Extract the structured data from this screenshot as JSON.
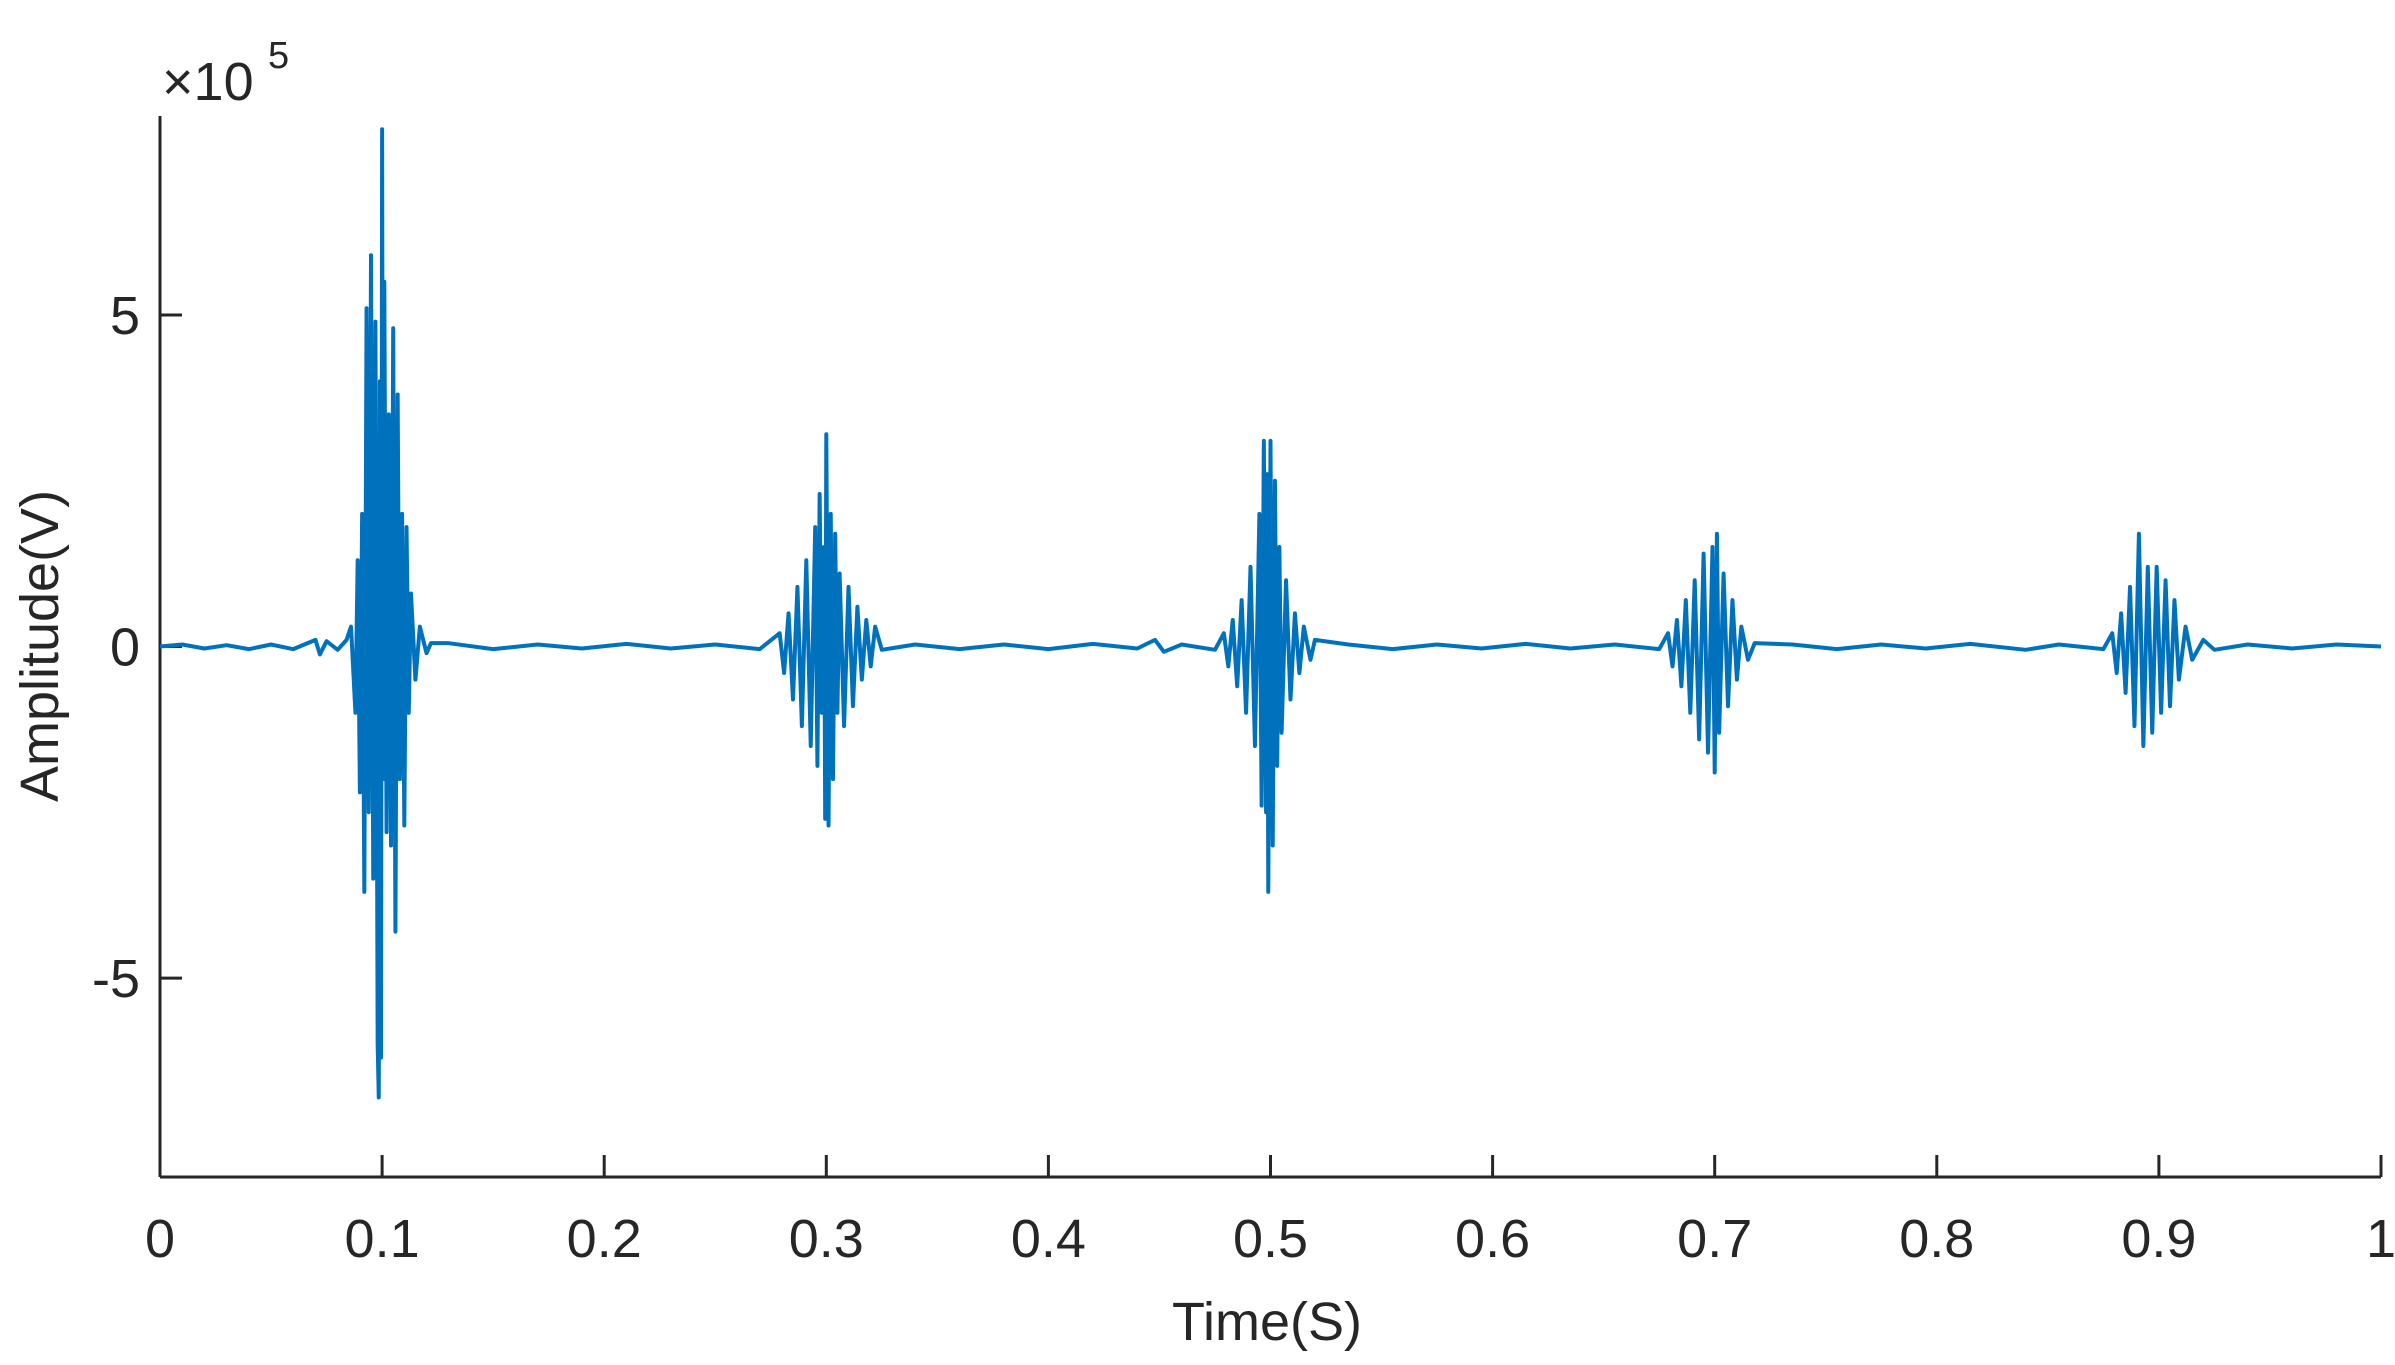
{
  "chart_data": {
    "type": "line",
    "x_label": "Time(S)",
    "y_label": "Amplitude(V)",
    "y_multiplier": "×10",
    "y_exponent": "5",
    "xlim": [
      0,
      1
    ],
    "xticks": [
      0,
      0.1,
      0.2,
      0.3,
      0.4,
      0.5,
      0.6,
      0.7,
      0.8,
      0.9,
      1
    ],
    "ylim": [
      -8,
      8
    ],
    "yticks": [
      -5,
      0,
      5
    ],
    "grid": false,
    "x": [
      0,
      0.01,
      0.02,
      0.03,
      0.04,
      0.05,
      0.06,
      0.07,
      0.072,
      0.075,
      0.08,
      0.084,
      0.086,
      0.088,
      0.089,
      0.09,
      0.091,
      0.092,
      0.093,
      0.094,
      0.095,
      0.096,
      0.097,
      0.098,
      0.0985,
      0.099,
      0.0995,
      0.1,
      0.1005,
      0.101,
      0.102,
      0.103,
      0.104,
      0.105,
      0.106,
      0.107,
      0.108,
      0.109,
      0.11,
      0.111,
      0.112,
      0.113,
      0.115,
      0.117,
      0.12,
      0.122,
      0.13,
      0.15,
      0.17,
      0.19,
      0.21,
      0.23,
      0.25,
      0.27,
      0.279,
      0.281,
      0.283,
      0.285,
      0.287,
      0.289,
      0.291,
      0.293,
      0.295,
      0.296,
      0.297,
      0.298,
      0.299,
      0.2995,
      0.3,
      0.301,
      0.302,
      0.303,
      0.304,
      0.305,
      0.306,
      0.308,
      0.31,
      0.312,
      0.314,
      0.316,
      0.318,
      0.32,
      0.322,
      0.325,
      0.34,
      0.36,
      0.38,
      0.4,
      0.42,
      0.44,
      0.448,
      0.452,
      0.46,
      0.475,
      0.479,
      0.481,
      0.483,
      0.485,
      0.487,
      0.489,
      0.491,
      0.493,
      0.495,
      0.496,
      0.497,
      0.498,
      0.4985,
      0.499,
      0.5,
      0.501,
      0.502,
      0.503,
      0.504,
      0.505,
      0.507,
      0.509,
      0.511,
      0.513,
      0.515,
      0.518,
      0.52,
      0.535,
      0.555,
      0.575,
      0.595,
      0.615,
      0.635,
      0.655,
      0.675,
      0.679,
      0.681,
      0.683,
      0.685,
      0.687,
      0.689,
      0.691,
      0.693,
      0.695,
      0.697,
      0.699,
      0.7,
      0.701,
      0.702,
      0.704,
      0.706,
      0.708,
      0.71,
      0.712,
      0.715,
      0.718,
      0.735,
      0.755,
      0.775,
      0.795,
      0.815,
      0.84,
      0.855,
      0.875,
      0.879,
      0.881,
      0.883,
      0.885,
      0.887,
      0.889,
      0.891,
      0.893,
      0.895,
      0.897,
      0.899,
      0.901,
      0.903,
      0.905,
      0.907,
      0.909,
      0.912,
      0.915,
      0.92,
      0.925,
      0.94,
      0.96,
      0.98,
      1
    ],
    "series": [
      {
        "color": "#0072BD",
        "values": [
          0,
          0.03,
          -0.03,
          0.02,
          -0.04,
          0.03,
          -0.04,
          0.1,
          -0.12,
          0.08,
          -0.05,
          0.1,
          0.3,
          -1.0,
          1.3,
          -2.2,
          2.0,
          -3.7,
          5.1,
          -2.5,
          5.9,
          -3.5,
          4.9,
          -6.0,
          -6.8,
          4.0,
          -6.2,
          7.8,
          -2.0,
          5.5,
          -2.8,
          3.5,
          -3.0,
          4.8,
          -4.3,
          3.8,
          -2.0,
          2.0,
          -2.7,
          1.8,
          -1.0,
          0.8,
          -0.5,
          0.3,
          -0.1,
          0.05,
          0.05,
          -0.04,
          0.03,
          -0.03,
          0.04,
          -0.03,
          0.03,
          -0.04,
          0.2,
          -0.4,
          0.5,
          -0.8,
          0.9,
          -1.2,
          1.3,
          -1.5,
          1.8,
          -1.8,
          2.3,
          -1.0,
          1.5,
          -2.6,
          3.2,
          -2.7,
          2.0,
          -2.0,
          1.7,
          -1.0,
          1.1,
          -1.2,
          0.9,
          -0.9,
          0.6,
          -0.5,
          0.4,
          -0.3,
          0.3,
          -0.05,
          0.03,
          -0.04,
          0.03,
          -0.04,
          0.04,
          -0.03,
          0.1,
          -0.08,
          0.03,
          -0.05,
          0.2,
          -0.3,
          0.4,
          -0.6,
          0.7,
          -1.0,
          1.2,
          -1.5,
          2.0,
          -2.4,
          3.1,
          -2.5,
          2.6,
          -3.7,
          3.1,
          -3.0,
          2.5,
          -1.8,
          1.5,
          -1.3,
          1.0,
          -0.8,
          0.5,
          -0.4,
          0.3,
          -0.2,
          0.1,
          0.03,
          -0.04,
          0.03,
          -0.03,
          0.04,
          -0.03,
          0.03,
          -0.04,
          0.2,
          -0.3,
          0.4,
          -0.6,
          0.7,
          -1.0,
          1.0,
          -1.4,
          1.4,
          -1.6,
          1.5,
          -1.9,
          1.7,
          -1.3,
          1.1,
          -0.9,
          0.7,
          -0.5,
          0.3,
          -0.2,
          0.05,
          0.03,
          -0.04,
          0.03,
          -0.03,
          0.04,
          -0.05,
          0.03,
          -0.04,
          0.2,
          -0.4,
          0.5,
          -0.7,
          0.9,
          -1.2,
          1.7,
          -1.5,
          1.2,
          -1.3,
          1.2,
          -1.0,
          1.0,
          -0.9,
          0.7,
          -0.5,
          0.3,
          -0.2,
          0.1,
          -0.05,
          0.03,
          -0.03,
          0.03,
          0
        ]
      }
    ]
  }
}
